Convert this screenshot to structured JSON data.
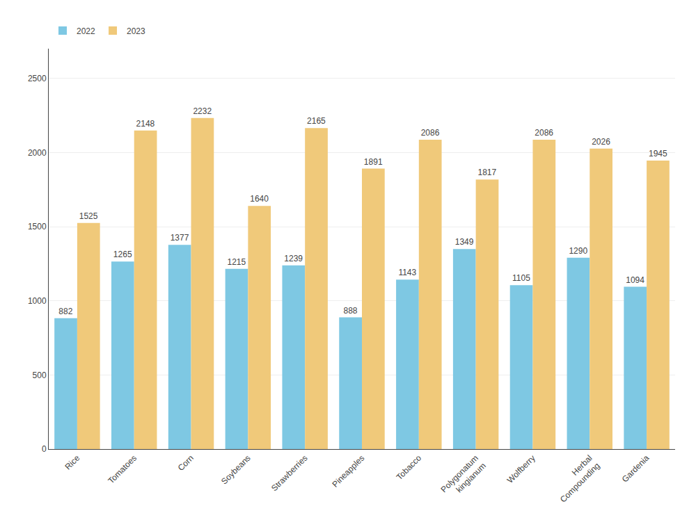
{
  "chart_data": {
    "type": "bar",
    "categories": [
      "Rice",
      "Tomatoes",
      "Corn",
      "Soybeans",
      "Strawberries",
      "Pineapples",
      "Tobacco",
      "Polygonatum\nkingianum",
      "Wolfberry",
      "Herbal\nCompounding",
      "Gardenia"
    ],
    "series": [
      {
        "name": "2022",
        "color": "#7EC8E3",
        "values": [
          882,
          1265,
          1377,
          1215,
          1239,
          888,
          1143,
          1349,
          1105,
          1290,
          1094
        ]
      },
      {
        "name": "2023",
        "color": "#F0C97A",
        "values": [
          1525,
          2148,
          2232,
          1640,
          2165,
          1891,
          2086,
          1817,
          2086,
          2026,
          1945
        ]
      }
    ],
    "ylim": [
      0,
      2700
    ],
    "yticks": [
      0,
      500,
      1000,
      1500,
      2000,
      2500
    ],
    "grid": true,
    "legend": "upper left",
    "data_labels": true
  }
}
